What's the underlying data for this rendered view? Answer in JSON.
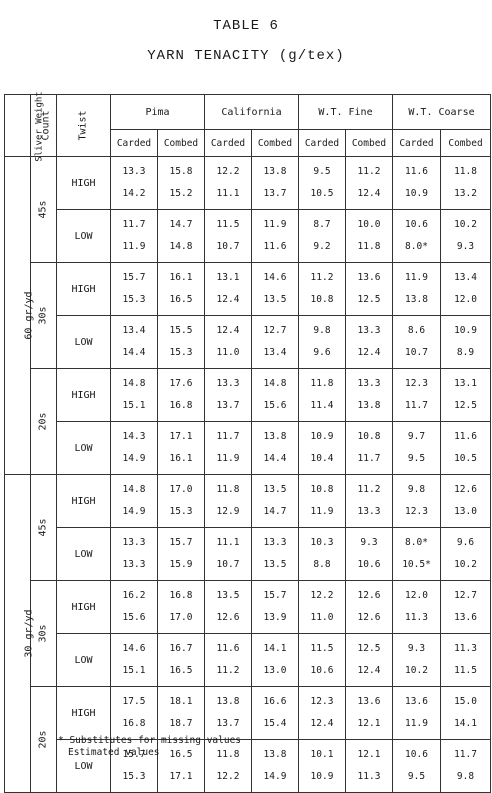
{
  "title": "TABLE 6",
  "subtitle": "YARN TENACITY (g/tex)",
  "headers": {
    "sliver_weight": "Sliver Weight",
    "count": "Count",
    "twist": "Twist",
    "cottons": [
      "Pima",
      "California",
      "W.T. Fine",
      "W.T. Coarse"
    ],
    "processes": [
      "Carded",
      "Combed",
      "Carded",
      "Combed",
      "Carded",
      "Combed",
      "Carded",
      "Combed"
    ]
  },
  "weights": [
    "60 gr/yd",
    "30 gr/yd"
  ],
  "counts": [
    "45s",
    "30s",
    "20s",
    "45s",
    "30s",
    "20s"
  ],
  "twists": [
    "HIGH",
    "LOW"
  ],
  "rows": [
    {
      "a": [
        "13.3",
        "15.8",
        "12.2",
        "13.8",
        "9.5",
        "11.2",
        "11.6",
        "11.8"
      ],
      "b": [
        "14.2",
        "15.2",
        "11.1",
        "13.7",
        "10.5",
        "12.4",
        "10.9",
        "13.2"
      ]
    },
    {
      "a": [
        "11.7",
        "14.7",
        "11.5",
        "11.9",
        "8.7",
        "10.0",
        "10.6",
        "10.2"
      ],
      "b": [
        "11.9",
        "14.8",
        "10.7",
        "11.6",
        "9.2",
        "11.8",
        "8.0*",
        "9.3"
      ]
    },
    {
      "a": [
        "15.7",
        "16.1",
        "13.1",
        "14.6",
        "11.2",
        "13.6",
        "11.9",
        "13.4"
      ],
      "b": [
        "15.3",
        "16.5",
        "12.4",
        "13.5",
        "10.8",
        "12.5",
        "13.8",
        "12.0"
      ]
    },
    {
      "a": [
        "13.4",
        "15.5",
        "12.4",
        "12.7",
        "9.8",
        "13.3",
        "8.6",
        "10.9"
      ],
      "b": [
        "14.4",
        "15.3",
        "11.0",
        "13.4",
        "9.6",
        "12.4",
        "10.7",
        "8.9"
      ]
    },
    {
      "a": [
        "14.8",
        "17.6",
        "13.3",
        "14.8",
        "11.8",
        "13.3",
        "12.3",
        "13.1"
      ],
      "b": [
        "15.1",
        "16.8",
        "13.7",
        "15.6",
        "11.4",
        "13.8",
        "11.7",
        "12.5"
      ]
    },
    {
      "a": [
        "14.3",
        "17.1",
        "11.7",
        "13.8",
        "10.9",
        "10.8",
        "9.7",
        "11.6"
      ],
      "b": [
        "14.9",
        "16.1",
        "11.9",
        "14.4",
        "10.4",
        "11.7",
        "9.5",
        "10.5"
      ]
    },
    {
      "a": [
        "14.8",
        "17.0",
        "11.8",
        "13.5",
        "10.8",
        "11.2",
        "9.8",
        "12.6"
      ],
      "b": [
        "14.9",
        "15.3",
        "12.9",
        "14.7",
        "11.9",
        "13.3",
        "12.3",
        "13.0"
      ]
    },
    {
      "a": [
        "13.3",
        "15.7",
        "11.1",
        "13.3",
        "10.3",
        "9.3",
        "8.0*",
        "9.6"
      ],
      "b": [
        "13.3",
        "15.9",
        "10.7",
        "13.5",
        "8.8",
        "10.6",
        "10.5*",
        "10.2"
      ]
    },
    {
      "a": [
        "16.2",
        "16.8",
        "13.5",
        "15.7",
        "12.2",
        "12.6",
        "12.0",
        "12.7"
      ],
      "b": [
        "15.6",
        "17.0",
        "12.6",
        "13.9",
        "11.0",
        "12.6",
        "11.3",
        "13.6"
      ]
    },
    {
      "a": [
        "14.6",
        "16.7",
        "11.6",
        "14.1",
        "11.5",
        "12.5",
        "9.3",
        "11.3"
      ],
      "b": [
        "15.1",
        "16.5",
        "11.2",
        "13.0",
        "10.6",
        "12.4",
        "10.2",
        "11.5"
      ]
    },
    {
      "a": [
        "17.5",
        "18.1",
        "13.8",
        "16.6",
        "12.3",
        "13.6",
        "13.6",
        "15.0"
      ],
      "b": [
        "16.8",
        "18.7",
        "13.7",
        "15.4",
        "12.4",
        "12.1",
        "11.9",
        "14.1"
      ]
    },
    {
      "a": [
        "15.7",
        "16.5",
        "11.8",
        "13.8",
        "10.1",
        "12.1",
        "10.6",
        "11.7"
      ],
      "b": [
        "15.3",
        "17.1",
        "12.2",
        "14.9",
        "10.9",
        "11.3",
        "9.5",
        "9.8"
      ]
    }
  ],
  "footnotes": {
    "note1": "* Substitutes for missing values",
    "note2": "Estimated values"
  }
}
